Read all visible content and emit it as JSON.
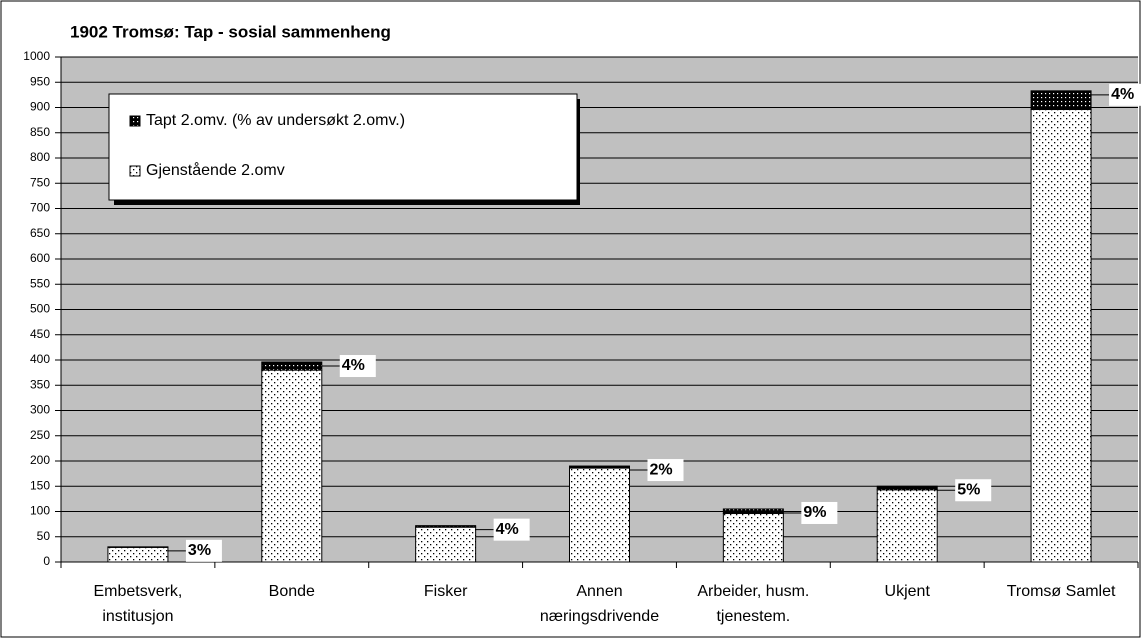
{
  "chart_data": {
    "type": "stacked_bar",
    "title": "1902 Tromsø: Tap - sosial sammenheng",
    "categories": [
      [
        "Embetsverk,",
        "institusjon"
      ],
      [
        "Bonde"
      ],
      [
        "Fisker"
      ],
      [
        "Annen",
        "næringsdrivende"
      ],
      [
        "Arbeider, husm.",
        "tjenestem."
      ],
      [
        "Ukjent"
      ],
      [
        "Tromsø Samlet"
      ]
    ],
    "series": [
      {
        "name": "Gjenstående 2.omv",
        "color": "#ffffff",
        "values": [
          29,
          380,
          69,
          186,
          96,
          143,
          896
        ]
      },
      {
        "name": "Tapt 2.omv. (% av undersøkt 2.omv.)",
        "color": "#000000",
        "values": [
          1,
          16,
          3,
          4,
          9,
          7,
          37
        ]
      }
    ],
    "loss_labels": [
      "3%",
      "4%",
      "4%",
      "2%",
      "9%",
      "5%",
      "4%"
    ],
    "ylim": [
      0,
      1000
    ],
    "yticks": [
      0,
      50,
      100,
      150,
      200,
      250,
      300,
      350,
      400,
      450,
      500,
      550,
      600,
      650,
      700,
      750,
      800,
      850,
      900,
      950,
      1000
    ],
    "grid": true
  }
}
